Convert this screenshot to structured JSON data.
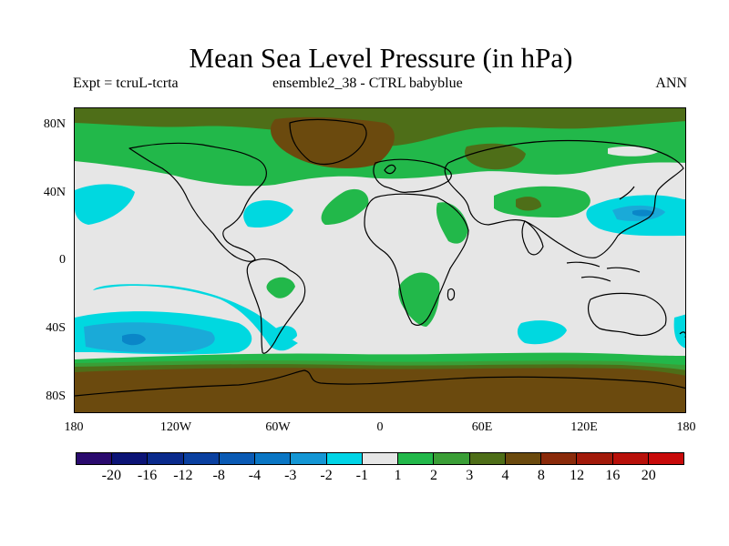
{
  "title": "Mean Sea Level Pressure (in hPa)",
  "subtitle": {
    "experiment": "Expt = tcruL-tcrta",
    "ensemble": "ensemble2_38 - CTRL babyblue",
    "season": "ANN"
  },
  "map": {
    "projection": "cylindrical equidistant",
    "lat_labels": [
      "80N",
      "40N",
      "0",
      "40S",
      "80S"
    ],
    "lon_labels": [
      "180",
      "120W",
      "60W",
      "0",
      "60E",
      "120E",
      "180"
    ],
    "colors": {
      "neutral": "#e6e6e6",
      "neg1": "#00d8e0",
      "neg2": "#1aaad8",
      "neg3": "#0a86c8",
      "pos1": "#22b84a",
      "pos2": "#3a9e36",
      "pos3": "#4e6e18",
      "pos4": "#6b4a0e",
      "coast": "#000000"
    }
  },
  "colorbar": {
    "labels": [
      "-20",
      "-16",
      "-12",
      "-8",
      "-4",
      "-3",
      "-2",
      "-1",
      "1",
      "2",
      "3",
      "4",
      "8",
      "12",
      "16",
      "20"
    ],
    "colors": [
      "#2a0a6e",
      "#0c1476",
      "#0a2a8c",
      "#0a40a0",
      "#0a5ab4",
      "#0a76c4",
      "#1496d4",
      "#00d4e6",
      "#e6e6e6",
      "#22b84a",
      "#3a9e36",
      "#4e6e18",
      "#6b4a0e",
      "#8a2a0a",
      "#a21a0a",
      "#b8100a",
      "#c80a0a"
    ]
  }
}
